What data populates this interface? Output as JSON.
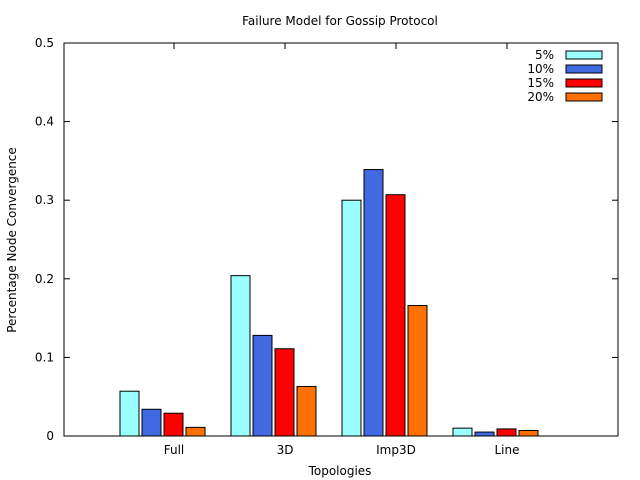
{
  "chart_data": {
    "type": "bar",
    "title": "Failure Model for Gossip Protocol",
    "xlabel": "Topologies",
    "ylabel": "Percentage Node Convergence",
    "categories": [
      "Full",
      "3D",
      "Imp3D",
      "Line"
    ],
    "ylim": [
      0,
      0.5
    ],
    "yticks": [
      "0",
      "0.1",
      "0.2",
      "0.3",
      "0.4",
      "0.5"
    ],
    "legend_position": "top-right",
    "series": [
      {
        "name": "5%",
        "color": "#99ffff",
        "values": [
          0.057,
          0.204,
          0.3,
          0.01
        ]
      },
      {
        "name": "10%",
        "color": "#4169e1",
        "values": [
          0.034,
          0.128,
          0.339,
          0.005
        ]
      },
      {
        "name": "15%",
        "color": "#ff0000",
        "values": [
          0.029,
          0.111,
          0.307,
          0.009
        ]
      },
      {
        "name": "20%",
        "color": "#ff7000",
        "values": [
          0.011,
          0.063,
          0.166,
          0.007
        ]
      }
    ]
  }
}
